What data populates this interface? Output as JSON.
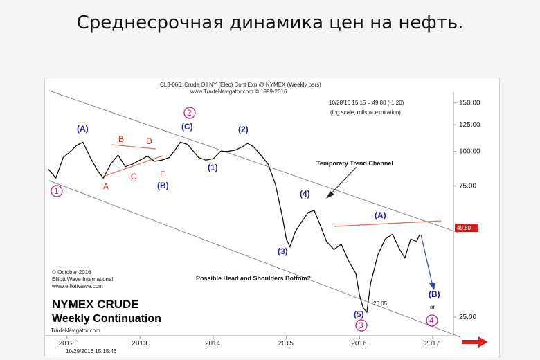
{
  "slide": {
    "title": "Среднесрочная динамика цен на нефть."
  },
  "chart_data": {
    "type": "line",
    "header_line1": "CL3-066: Crude Oil NY (Elec) Cont Exp @ NYMEX (Weekly bars)",
    "header_line2": "www.TradeNavigator.com © 1999-2016",
    "quote_line": "10/28/16 15:15 = 49.80 (-1.20)",
    "scale_note": "(log scale, rolls at expiration)",
    "x_ticks": [
      "2012",
      "2013",
      "2014",
      "2015",
      "2016",
      "2017"
    ],
    "y_ticks": [
      "150.00",
      "125.00",
      "100.00",
      "75.00",
      "25.00"
    ],
    "y_scale": "log",
    "ylim": [
      24,
      155
    ],
    "last_price_label": "49.80",
    "low_label": "26.05",
    "series": [
      {
        "values": [
          [
            2011.75,
            86
          ],
          [
            2011.85,
            80
          ],
          [
            2011.95,
            95
          ],
          [
            2012.05,
            100
          ],
          [
            2012.13,
            105
          ],
          [
            2012.22,
            108
          ],
          [
            2012.32,
            95
          ],
          [
            2012.42,
            85
          ],
          [
            2012.5,
            80
          ],
          [
            2012.6,
            90
          ],
          [
            2012.7,
            97
          ],
          [
            2012.8,
            88
          ],
          [
            2012.9,
            90
          ],
          [
            2013.0,
            93
          ],
          [
            2013.1,
            96
          ],
          [
            2013.2,
            92
          ],
          [
            2013.3,
            93
          ],
          [
            2013.4,
            95
          ],
          [
            2013.5,
            103
          ],
          [
            2013.55,
            108
          ],
          [
            2013.65,
            106
          ],
          [
            2013.8,
            95
          ],
          [
            2013.9,
            93
          ],
          [
            2014.0,
            94
          ],
          [
            2014.1,
            100
          ],
          [
            2014.2,
            100
          ],
          [
            2014.3,
            101
          ],
          [
            2014.4,
            104
          ],
          [
            2014.47,
            107
          ],
          [
            2014.55,
            104
          ],
          [
            2014.65,
            97
          ],
          [
            2014.75,
            90
          ],
          [
            2014.85,
            76
          ],
          [
            2014.95,
            57
          ],
          [
            2015.0,
            48
          ],
          [
            2015.05,
            45
          ],
          [
            2015.12,
            51
          ],
          [
            2015.2,
            55
          ],
          [
            2015.3,
            60
          ],
          [
            2015.38,
            61
          ],
          [
            2015.45,
            55
          ],
          [
            2015.55,
            47
          ],
          [
            2015.65,
            44
          ],
          [
            2015.75,
            46
          ],
          [
            2015.85,
            40
          ],
          [
            2015.95,
            36
          ],
          [
            2016.0,
            30
          ],
          [
            2016.05,
            27
          ],
          [
            2016.1,
            26.05
          ],
          [
            2016.15,
            33
          ],
          [
            2016.25,
            42
          ],
          [
            2016.35,
            48
          ],
          [
            2016.45,
            50
          ],
          [
            2016.55,
            44
          ],
          [
            2016.62,
            41
          ],
          [
            2016.7,
            48
          ],
          [
            2016.78,
            47
          ],
          [
            2016.82,
            49.8
          ]
        ]
      }
    ],
    "channel": {
      "label": "Temporary Trend Channel"
    },
    "wave_labels_blue": [
      "(A)",
      "(C)",
      "(2)",
      "(1)",
      "(B)",
      "(4)",
      "(3)",
      "(A)",
      "(5)",
      "(B)"
    ],
    "wave_labels_red": [
      "B",
      "D",
      "A",
      "C",
      "E"
    ],
    "wave_labels_circled": [
      "1",
      "2",
      "3",
      "4"
    ],
    "or_text": "or",
    "pattern_note": "Possible Head and Shoulders Bottom?",
    "copyright": [
      "© October 2016",
      "Elliott Wave International",
      "www.elliottwave.com"
    ],
    "big_title_line1": "NYMEX CRUDE",
    "big_title_line2": "Weekly Continuation",
    "footer_source": "TradeNavigator.com",
    "footer_date": "10/29/2016 15:15:46",
    "colors": {
      "price": "#111111",
      "channel": "#8a8a8a",
      "neckline": "#e07060",
      "wave_blue": "#1f1f9a",
      "wave_red": "#cc2222",
      "circle": "#c0147a",
      "projection": "#3a48b0"
    }
  }
}
